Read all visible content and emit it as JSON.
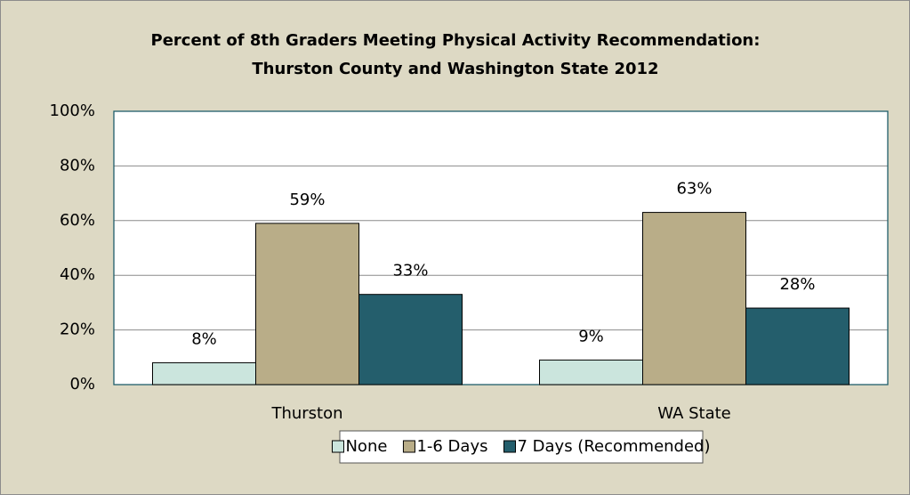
{
  "chart_data": {
    "type": "bar",
    "title": [
      "Percent of 8th Graders Meeting Physical Activity Recommendation:",
      "Thurston County and Washington State 2012"
    ],
    "categories": [
      "Thurston",
      "WA State"
    ],
    "series": [
      {
        "name": "None",
        "color": "#cbe5dd",
        "values": [
          8,
          9
        ],
        "value_labels": [
          "8%",
          "9%"
        ]
      },
      {
        "name": "1-6 Days",
        "color": "#b9ad88",
        "values": [
          59,
          63
        ],
        "value_labels": [
          "59%",
          "63%"
        ]
      },
      {
        "name": "7 Days (Recommended)",
        "color": "#245e6c",
        "values": [
          33,
          28
        ],
        "value_labels": [
          "33%",
          "28%"
        ]
      }
    ],
    "ylim": [
      0,
      100
    ],
    "yticks": [
      {
        "value": 0,
        "label": "0%"
      },
      {
        "value": 20,
        "label": "20%"
      },
      {
        "value": 40,
        "label": "40%"
      },
      {
        "value": 60,
        "label": "60%"
      },
      {
        "value": 80,
        "label": "80%"
      },
      {
        "value": 100,
        "label": "100%"
      }
    ],
    "grid": true,
    "legend": "bottom"
  }
}
